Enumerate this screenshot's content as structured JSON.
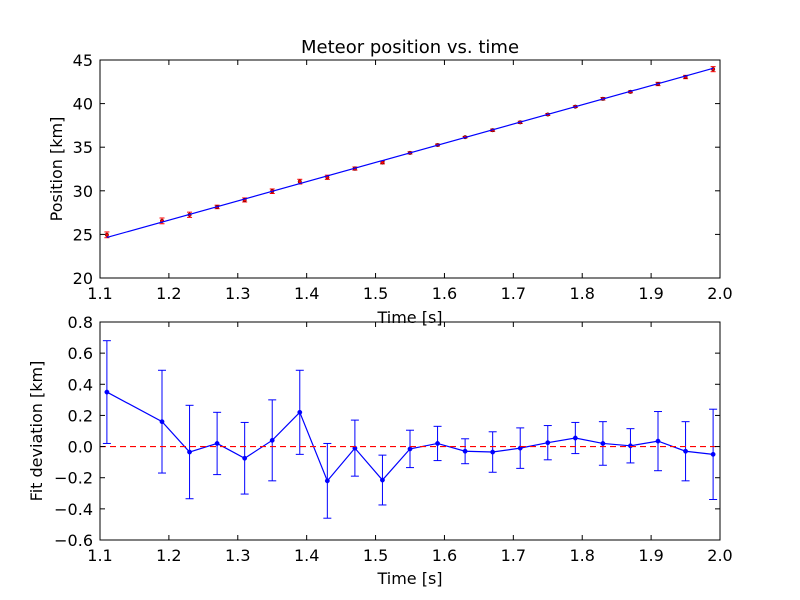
{
  "chart_data": [
    {
      "type": "scatter",
      "title": "Meteor position vs. time",
      "xlabel": "Time [s]",
      "ylabel": "Position [km]",
      "xlim": [
        1.1,
        2.0
      ],
      "ylim": [
        20,
        45
      ],
      "xticks": [
        "1.1",
        "1.2",
        "1.3",
        "1.4",
        "1.5",
        "1.6",
        "1.7",
        "1.8",
        "1.9",
        "2.0"
      ],
      "yticks": [
        "20",
        "25",
        "30",
        "35",
        "40",
        "45"
      ],
      "grid": false,
      "series": [
        {
          "kind": "errorbar",
          "color": "#ff0000",
          "x": [
            1.11,
            1.19,
            1.23,
            1.27,
            1.31,
            1.35,
            1.39,
            1.43,
            1.47,
            1.51,
            1.55,
            1.59,
            1.63,
            1.67,
            1.71,
            1.75,
            1.79,
            1.83,
            1.87,
            1.91,
            1.95,
            1.99
          ],
          "y": [
            24.95,
            26.55,
            27.25,
            28.15,
            28.95,
            29.95,
            31.05,
            31.55,
            32.55,
            33.25,
            34.35,
            35.25,
            36.15,
            36.95,
            37.85,
            38.75,
            39.65,
            40.55,
            41.35,
            42.25,
            43.05,
            43.95
          ],
          "yerr": [
            0.33,
            0.33,
            0.3,
            0.2,
            0.23,
            0.26,
            0.27,
            0.24,
            0.18,
            0.16,
            0.12,
            0.11,
            0.08,
            0.13,
            0.13,
            0.11,
            0.1,
            0.14,
            0.11,
            0.19,
            0.19,
            0.29
          ]
        },
        {
          "kind": "line",
          "color": "#0000ff",
          "x": [
            1.11,
            1.99
          ],
          "y": [
            24.65,
            44.05
          ]
        }
      ]
    },
    {
      "type": "line",
      "title": "",
      "xlabel": "Time [s]",
      "ylabel": "Fit deviation [km]",
      "xlim": [
        1.1,
        2.0
      ],
      "ylim": [
        -0.6,
        0.8
      ],
      "xticks": [
        "1.1",
        "1.2",
        "1.3",
        "1.4",
        "1.5",
        "1.6",
        "1.7",
        "1.8",
        "1.9",
        "2.0"
      ],
      "yticks": [
        "−0.6",
        "−0.4",
        "−0.2",
        "0.0",
        "0.2",
        "0.4",
        "0.6",
        "0.8"
      ],
      "grid": false,
      "series": [
        {
          "kind": "errorbar-line",
          "color": "#0000ff",
          "x": [
            1.11,
            1.19,
            1.23,
            1.27,
            1.31,
            1.35,
            1.39,
            1.43,
            1.47,
            1.51,
            1.55,
            1.59,
            1.63,
            1.67,
            1.71,
            1.75,
            1.79,
            1.83,
            1.87,
            1.91,
            1.95,
            1.99
          ],
          "y": [
            0.35,
            0.16,
            -0.035,
            0.02,
            -0.075,
            0.04,
            0.22,
            -0.22,
            -0.01,
            -0.215,
            -0.015,
            0.02,
            -0.03,
            -0.035,
            -0.01,
            0.025,
            0.055,
            0.02,
            0.005,
            0.035,
            -0.03,
            -0.05
          ],
          "yerr": [
            0.33,
            0.33,
            0.3,
            0.2,
            0.23,
            0.26,
            0.27,
            0.24,
            0.18,
            0.16,
            0.12,
            0.11,
            0.08,
            0.13,
            0.13,
            0.11,
            0.1,
            0.14,
            0.11,
            0.19,
            0.19,
            0.29
          ]
        },
        {
          "kind": "hline",
          "color": "#ff0000",
          "style": "dashed",
          "y": 0.0
        }
      ]
    }
  ]
}
